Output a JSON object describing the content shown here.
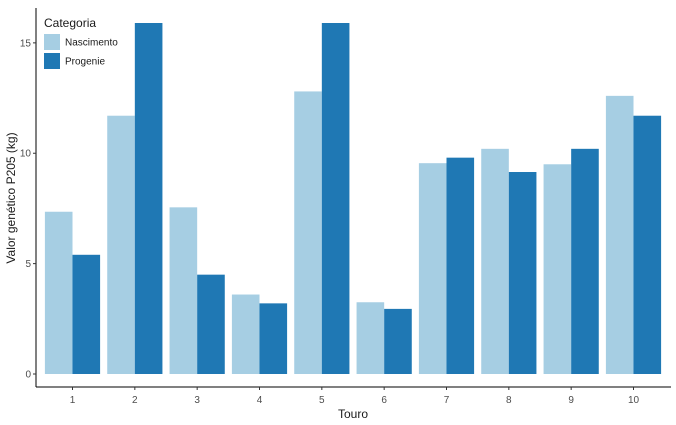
{
  "chart_data": {
    "type": "bar",
    "title": "",
    "xlabel": "Touro",
    "ylabel": "Valor genético P205 (kg)",
    "categories": [
      "1",
      "2",
      "3",
      "4",
      "5",
      "6",
      "7",
      "8",
      "9",
      "10"
    ],
    "series": [
      {
        "name": "Nascimento",
        "color": "#a6cee3",
        "values": [
          7.35,
          11.7,
          7.55,
          3.6,
          12.8,
          3.25,
          9.55,
          10.2,
          9.5,
          12.6
        ]
      },
      {
        "name": "Progenie",
        "color": "#1f78b4",
        "values": [
          5.4,
          15.9,
          4.5,
          3.2,
          15.9,
          2.95,
          9.8,
          9.15,
          10.2,
          11.7
        ]
      }
    ],
    "ylim": [
      0,
      15.9
    ],
    "yticks": [
      0,
      5,
      10,
      15
    ],
    "grid": false,
    "legend": {
      "title": "Categoria",
      "position": "top-left"
    }
  }
}
